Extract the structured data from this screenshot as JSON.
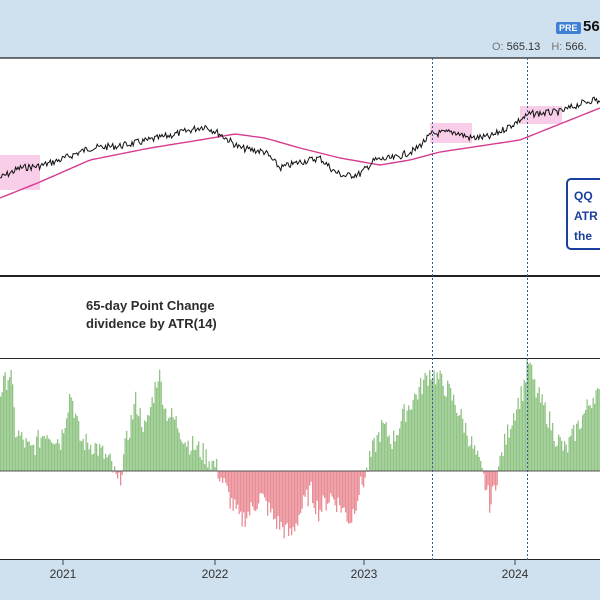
{
  "header": {
    "badge": "PRE",
    "price": "56",
    "ohlc": [
      {
        "key": "O:",
        "value": "565.13"
      },
      {
        "key": "H:",
        "value": "566."
      }
    ]
  },
  "callout": {
    "lines": [
      "QQ",
      "ATR",
      "the"
    ]
  },
  "chart_data": [
    {
      "type": "line",
      "title": "",
      "x_start": "2020-07",
      "x_end": "2024-09",
      "series": [],
      "grid": false
    },
    {
      "type": "bar",
      "title": "65-day Point Change dividence by ATR(14)",
      "x_ticks": [
        "2021",
        "2022",
        "2023",
        "2024"
      ],
      "baseline": 0,
      "positive_color": "#8fc484",
      "negative_color": "#e98c95",
      "vlines": [
        "2023-06",
        "2024-02"
      ]
    }
  ],
  "colors": {
    "price_line": "#111111",
    "moving_average": "#d63c8f",
    "highlight": "#f2a6d6",
    "frame": "#222222",
    "panel_bg": "#ffffff",
    "app_bg": "#cfe0ee"
  }
}
